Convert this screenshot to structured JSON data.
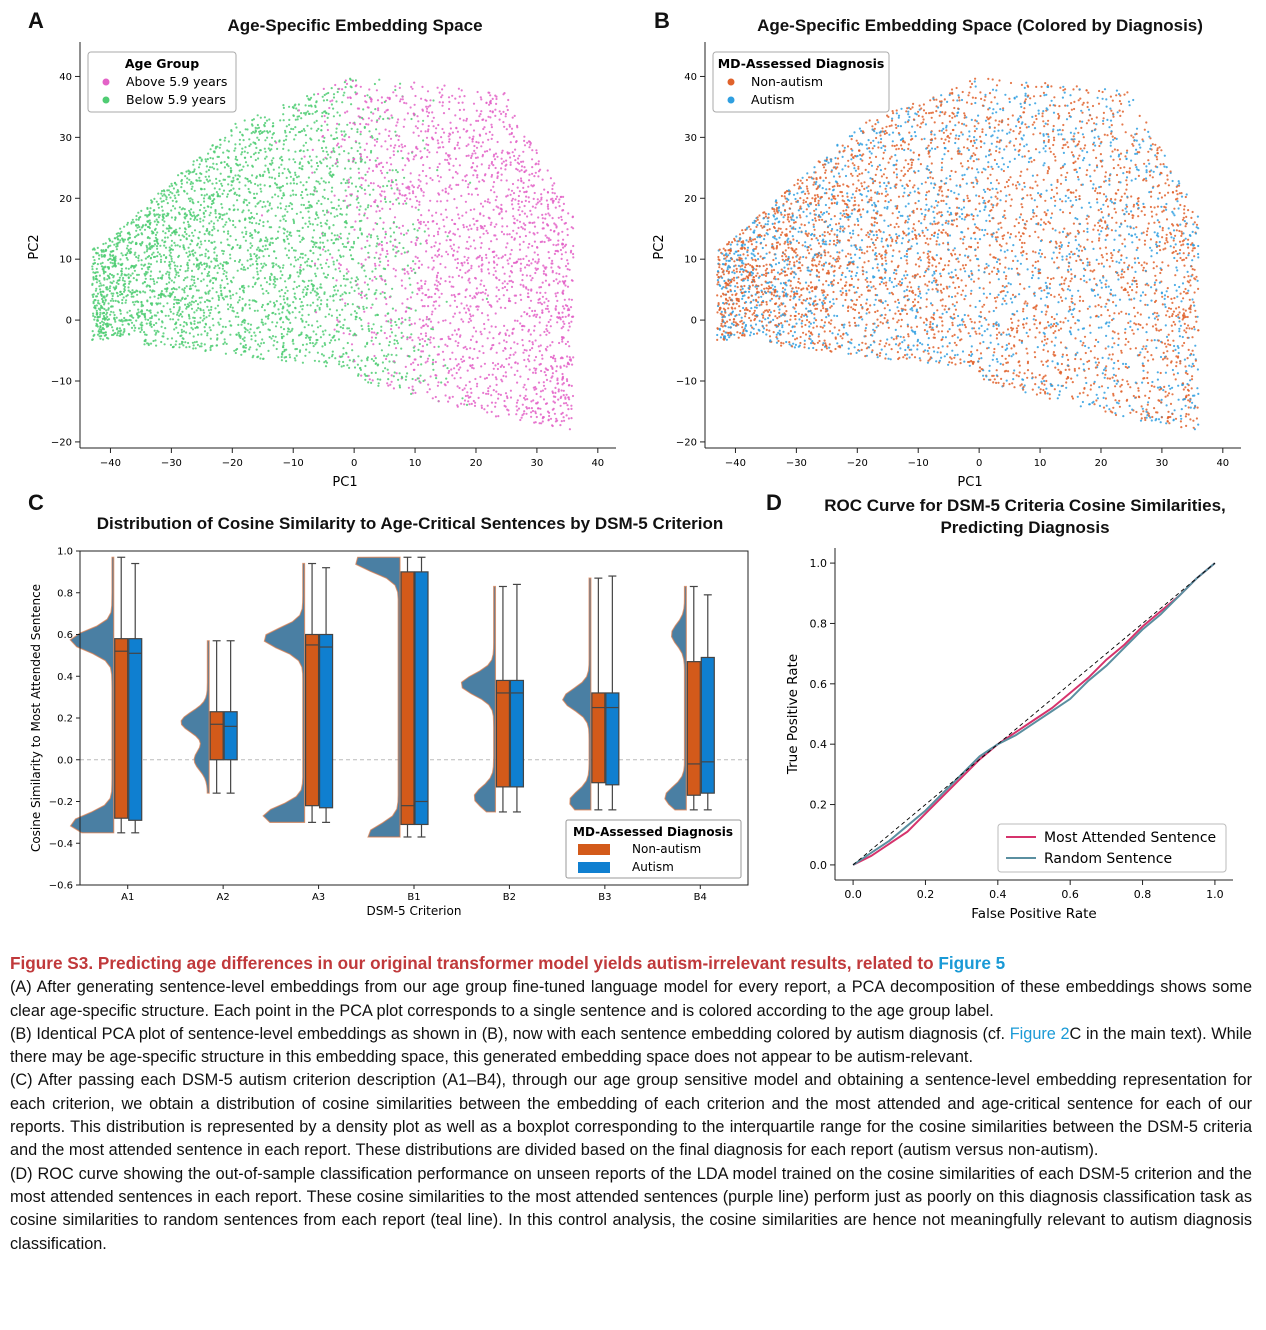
{
  "panelA": {
    "letter": "A",
    "title": "Age-Specific Embedding Space",
    "xlabel": "PC1",
    "ylabel": "PC2",
    "legend_title": "Age Group",
    "legend_items": [
      {
        "label": "Above 5.9 years",
        "color": "#e362c7"
      },
      {
        "label": "Below 5.9 years",
        "color": "#4fcc73"
      }
    ]
  },
  "panelB": {
    "letter": "B",
    "title": "Age-Specific Embedding Space (Colored by Diagnosis)",
    "xlabel": "PC1",
    "ylabel": "PC2",
    "legend_title": "MD-Assessed Diagnosis",
    "legend_items": [
      {
        "label": "Non-autism",
        "color": "#e0622b"
      },
      {
        "label": "Autism",
        "color": "#2f9fe0"
      }
    ]
  },
  "panelC": {
    "letter": "C",
    "title": "Distribution of Cosine Similarity to Age-Critical Sentences by DSM-5 Criterion",
    "xlabel": "DSM-5 Criterion",
    "ylabel": "Cosine Similarity to Most Attended Sentence",
    "legend_title": "MD-Assessed Diagnosis",
    "legend_items": [
      {
        "label": "Non-autism",
        "color": "#d35a1a"
      },
      {
        "label": "Autism",
        "color": "#0f7fd0"
      }
    ]
  },
  "panelD": {
    "letter": "D",
    "title_line1": "ROC Curve for DSM-5 Criteria Cosine Similarities,",
    "title_line2": "Predicting Diagnosis",
    "xlabel": "False Positive Rate",
    "ylabel": "True Positive Rate",
    "legend_items": [
      {
        "label": "Most Attended Sentence",
        "color": "#d6336c"
      },
      {
        "label": "Random Sentence",
        "color": "#5a8fa0"
      }
    ]
  },
  "chart_data": [
    {
      "id": "A",
      "type": "scatter",
      "title": "Age-Specific Embedding Space",
      "xlabel": "PC1",
      "ylabel": "PC2",
      "xlim": [
        -45,
        42
      ],
      "ylim": [
        -21,
        45
      ],
      "xticks": [
        -40,
        -30,
        -20,
        -10,
        0,
        10,
        20,
        30,
        40
      ],
      "yticks": [
        -20,
        -10,
        0,
        10,
        20,
        30,
        40
      ],
      "series": [
        {
          "name": "Below 5.9 years",
          "color": "#4fcc73",
          "region": {
            "x": [
              -42,
              10
            ],
            "y": [
              -8,
              38
            ]
          }
        },
        {
          "name": "Above 5.9 years",
          "color": "#e362c7",
          "region": {
            "x": [
              -5,
              36
            ],
            "y": [
              -18,
              42
            ]
          }
        }
      ]
    },
    {
      "id": "B",
      "type": "scatter",
      "title": "Age-Specific Embedding Space (Colored by Diagnosis)",
      "xlabel": "PC1",
      "ylabel": "PC2",
      "xlim": [
        -45,
        42
      ],
      "ylim": [
        -21,
        45
      ],
      "xticks": [
        -40,
        -30,
        -20,
        -10,
        0,
        10,
        20,
        30,
        40
      ],
      "yticks": [
        -20,
        -10,
        0,
        10,
        20,
        30,
        40
      ],
      "series": [
        {
          "name": "Non-autism",
          "color": "#e0622b"
        },
        {
          "name": "Autism",
          "color": "#2f9fe0"
        }
      ]
    },
    {
      "id": "C",
      "type": "box",
      "title": "Distribution of Cosine Similarity to Age-Critical Sentences by DSM-5 Criterion",
      "xlabel": "DSM-5 Criterion",
      "ylabel": "Cosine Similarity to Most Attended Sentence",
      "ylim": [
        -0.6,
        1.0
      ],
      "yticks": [
        -0.6,
        -0.4,
        -0.2,
        0.0,
        0.2,
        0.4,
        0.6,
        0.8,
        1.0
      ],
      "categories": [
        "A1",
        "A2",
        "A3",
        "B1",
        "B2",
        "B3",
        "B4"
      ],
      "series": [
        {
          "name": "Non-autism",
          "color": "#d35a1a",
          "whisker_low": [
            -0.35,
            -0.16,
            -0.3,
            -0.37,
            -0.25,
            -0.24,
            -0.24
          ],
          "q1": [
            -0.28,
            0.0,
            -0.22,
            -0.31,
            -0.13,
            -0.11,
            -0.17
          ],
          "median": [
            0.52,
            0.17,
            0.55,
            -0.22,
            0.32,
            0.25,
            -0.02
          ],
          "q3": [
            0.58,
            0.23,
            0.6,
            0.9,
            0.38,
            0.32,
            0.47
          ],
          "whisker_high": [
            0.97,
            0.57,
            0.94,
            0.97,
            0.83,
            0.87,
            0.83
          ]
        },
        {
          "name": "Autism",
          "color": "#0f7fd0",
          "whisker_low": [
            -0.35,
            -0.16,
            -0.3,
            -0.37,
            -0.25,
            -0.24,
            -0.24
          ],
          "q1": [
            -0.29,
            0.0,
            -0.23,
            -0.31,
            -0.13,
            -0.12,
            -0.16
          ],
          "median": [
            0.51,
            0.16,
            0.54,
            -0.2,
            0.32,
            0.25,
            -0.01
          ],
          "q3": [
            0.58,
            0.23,
            0.6,
            0.9,
            0.38,
            0.32,
            0.49
          ],
          "whisker_high": [
            0.94,
            0.57,
            0.92,
            0.97,
            0.84,
            0.88,
            0.79
          ]
        }
      ],
      "density_peaks": [
        [
          [
            -0.31,
            0.95
          ],
          [
            0.57,
            0.95
          ]
        ],
        [
          [
            0.18,
            0.6
          ],
          [
            0.0,
            0.3
          ]
        ],
        [
          [
            -0.27,
            0.9
          ],
          [
            0.58,
            0.9
          ]
        ],
        [
          [
            -0.36,
            0.7
          ],
          [
            0.95,
            1.0
          ]
        ],
        [
          [
            0.36,
            0.75
          ],
          [
            -0.18,
            0.45
          ]
        ],
        [
          [
            0.29,
            0.6
          ],
          [
            -0.2,
            0.45
          ]
        ],
        [
          [
            -0.18,
            0.45
          ],
          [
            0.6,
            0.3
          ]
        ]
      ]
    },
    {
      "id": "D",
      "type": "line",
      "title": "ROC Curve for DSM-5 Criteria Cosine Similarities, Predicting Diagnosis",
      "xlabel": "False Positive Rate",
      "ylabel": "True Positive Rate",
      "xlim": [
        -0.05,
        1.05
      ],
      "ylim": [
        -0.05,
        1.05
      ],
      "xticks": [
        0.0,
        0.2,
        0.4,
        0.6,
        0.8,
        1.0
      ],
      "yticks": [
        0.0,
        0.2,
        0.4,
        0.6,
        0.8,
        1.0
      ],
      "series": [
        {
          "name": "Most Attended Sentence",
          "color": "#d6336c",
          "x": [
            0,
            0.05,
            0.1,
            0.15,
            0.2,
            0.25,
            0.3,
            0.35,
            0.4,
            0.45,
            0.5,
            0.55,
            0.6,
            0.65,
            0.7,
            0.75,
            0.8,
            0.85,
            0.9,
            0.95,
            1.0
          ],
          "y": [
            0,
            0.03,
            0.07,
            0.11,
            0.17,
            0.23,
            0.29,
            0.35,
            0.4,
            0.44,
            0.48,
            0.52,
            0.57,
            0.62,
            0.68,
            0.73,
            0.79,
            0.84,
            0.89,
            0.95,
            1.0
          ]
        },
        {
          "name": "Random Sentence",
          "color": "#5a8fa0",
          "x": [
            0,
            0.05,
            0.1,
            0.15,
            0.2,
            0.25,
            0.3,
            0.35,
            0.4,
            0.45,
            0.5,
            0.55,
            0.6,
            0.65,
            0.7,
            0.75,
            0.8,
            0.85,
            0.9,
            0.95,
            1.0
          ],
          "y": [
            0,
            0.04,
            0.08,
            0.13,
            0.18,
            0.24,
            0.3,
            0.36,
            0.4,
            0.43,
            0.47,
            0.51,
            0.55,
            0.61,
            0.66,
            0.72,
            0.78,
            0.83,
            0.89,
            0.95,
            1.0
          ]
        },
        {
          "name": "",
          "color": "#000000",
          "dashed": true,
          "x": [
            0,
            1
          ],
          "y": [
            0,
            1
          ]
        }
      ]
    }
  ],
  "caption": {
    "title": "Figure S3.  Predicting age differences in our original transformer model yields autism-irrelevant results, related to ",
    "title_ref": "Figure 5",
    "pA": "(A) After generating sentence-level embeddings from our age group fine-tuned language model for every report, a PCA decomposition of these embeddings shows some clear age-specific structure. Each point in the PCA plot corresponds to a single sentence and is colored according to the age group label.",
    "pB_start": "(B) Identical PCA plot of sentence-level embeddings as shown in (B), now with each sentence embedding colored by autism diagnosis (cf. ",
    "pB_ref": "Figure 2",
    "pB_end": "C in the main text). While there may be age-specific structure in this embedding space, this generated embedding space does not appear to be autism-relevant.",
    "pC": "(C) After passing each DSM-5 autism criterion description (A1–B4), through our age group sensitive model and obtaining a sentence-level embedding representation for each criterion, we obtain a distribution of cosine similarities between the embedding of each criterion and the most attended and age-critical sentence for each of our reports. This distribution is represented by a density plot as well as a boxplot corresponding to the interquartile range for the cosine similarities between the DSM-5 criteria and the most attended sentence in each report. These distributions are divided based on the final diagnosis for each report (autism versus non-autism).",
    "pD": "(D) ROC curve showing the out-of-sample classification performance on unseen reports of the LDA model trained on the cosine similarities of each DSM-5 criterion and the most attended sentences in each report. These cosine similarities to the most attended sentences (purple line) perform just as poorly on this diagnosis classification task as cosine similarities to random sentences from each report (teal line). In this control analysis, the cosine similarities are hence not meaningfully relevant to autism diagnosis classification."
  }
}
